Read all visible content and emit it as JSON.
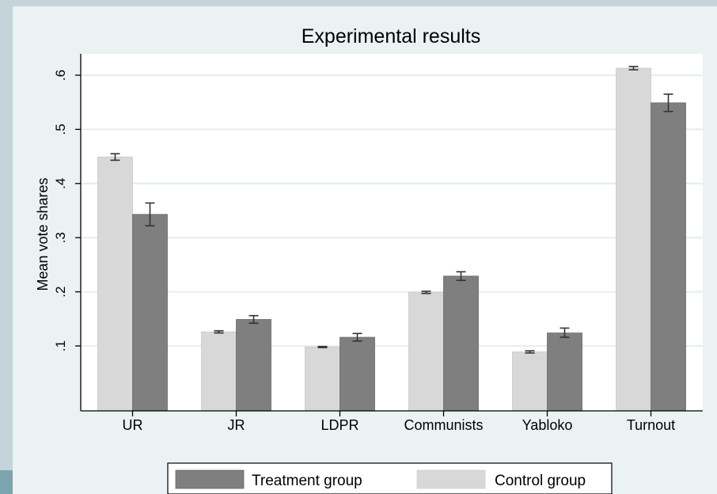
{
  "chart_data": {
    "type": "bar",
    "title": "Experimental results",
    "xlabel": "",
    "ylabel": "Mean vote shares",
    "ylim": [
      0,
      0.65
    ],
    "yticks": [
      0.1,
      0.2,
      0.3,
      0.4,
      0.5,
      0.6
    ],
    "ytick_labels": [
      ".1",
      ".2",
      ".3",
      ".4",
      ".5",
      ".6"
    ],
    "grid": true,
    "legend_position": "bottom",
    "categories": [
      "UR",
      "JR",
      "LDPR",
      "Communists",
      "Yabloko",
      "Turnout"
    ],
    "series": [
      {
        "name": "Control group",
        "color": "#d8d8d8",
        "values": [
          0.449,
          0.126,
          0.098,
          0.199,
          0.089,
          0.613
        ],
        "err_low": [
          0.443,
          0.124,
          0.097,
          0.197,
          0.087,
          0.61
        ],
        "err_high": [
          0.455,
          0.128,
          0.099,
          0.201,
          0.091,
          0.616
        ]
      },
      {
        "name": "Treatment group",
        "color": "#7f7f7f",
        "values": [
          0.343,
          0.149,
          0.116,
          0.229,
          0.124,
          0.549
        ],
        "err_low": [
          0.322,
          0.142,
          0.109,
          0.221,
          0.116,
          0.533
        ],
        "err_high": [
          0.364,
          0.156,
          0.123,
          0.237,
          0.133,
          0.565
        ]
      }
    ],
    "legend_order": [
      "Treatment group",
      "Control group"
    ]
  }
}
